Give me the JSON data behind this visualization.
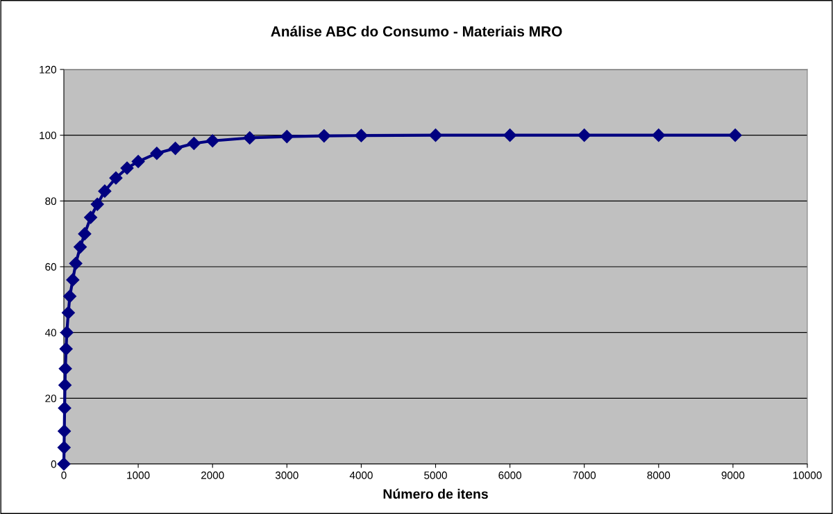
{
  "chart_data": {
    "type": "line",
    "title": "Análise ABC do Consumo - Materiais MRO",
    "xlabel": "Número de itens",
    "series": [
      {
        "color": "#000080",
        "x": [
          0,
          3,
          6,
          10,
          15,
          20,
          30,
          40,
          60,
          80,
          120,
          160,
          220,
          280,
          360,
          450,
          550,
          700,
          850,
          1000,
          1250,
          1500,
          1750,
          2000,
          2500,
          3000,
          3500,
          4000,
          5000,
          6000,
          7000,
          8000,
          9030
        ],
        "values": [
          0,
          5,
          10,
          17,
          24,
          29,
          35,
          40,
          46,
          51,
          56,
          61,
          66,
          70,
          75,
          79,
          83,
          87,
          90,
          92,
          94.5,
          96,
          97.5,
          98.3,
          99.2,
          99.6,
          99.8,
          99.9,
          100,
          100,
          100,
          100,
          100
        ]
      }
    ],
    "xlim": [
      0,
      10000
    ],
    "xticks": [
      0,
      1000,
      2000,
      3000,
      4000,
      5000,
      6000,
      7000,
      8000,
      9000,
      10000
    ],
    "ylim": [
      0,
      120
    ],
    "yticks": [
      0,
      20,
      40,
      60,
      80,
      100,
      120
    ],
    "grid": "y",
    "marker": "diamond",
    "line_style": "solid"
  }
}
